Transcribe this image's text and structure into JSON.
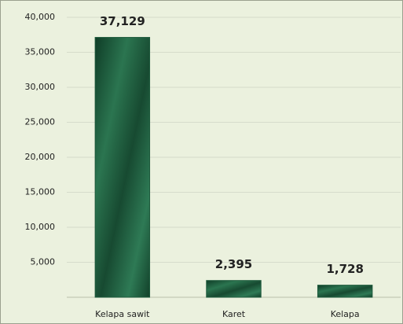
{
  "chart_data": {
    "type": "bar",
    "categories": [
      "Kelapa sawit",
      "Karet",
      "Kelapa"
    ],
    "values": [
      37129,
      2395,
      1728
    ],
    "value_labels": [
      "37,129",
      "2,395",
      "1,728"
    ],
    "color": "#1e5a3c",
    "ylim": [
      0,
      40000
    ],
    "yticks": [
      {
        "value": 5000,
        "label": "5,000"
      },
      {
        "value": 10000,
        "label": "10,000"
      },
      {
        "value": 15000,
        "label": "15,000"
      },
      {
        "value": 20000,
        "label": "20,000"
      },
      {
        "value": 25000,
        "label": "25,000"
      },
      {
        "value": 30000,
        "label": "30,000"
      },
      {
        "value": 35000,
        "label": "35,000"
      },
      {
        "value": 40000,
        "label": "40,000"
      }
    ],
    "grid": true
  }
}
